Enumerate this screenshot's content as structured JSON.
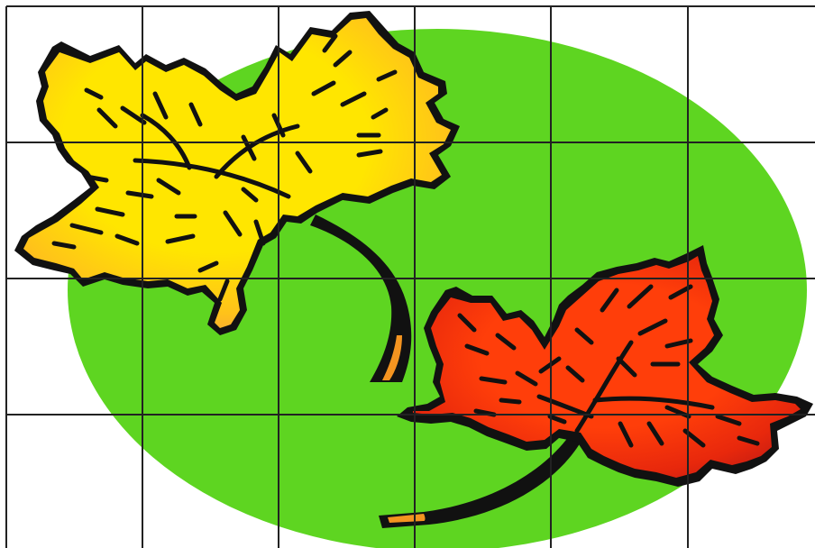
{
  "image": {
    "background_color": "#FFFFFF",
    "grid": {
      "rows": 4,
      "columns": 6,
      "line_color": "#222222"
    },
    "ellipse": {
      "fill": "#5ED521"
    },
    "leaves": [
      {
        "name": "yellow-maple-leaf",
        "fill": "#FFE600",
        "edge_color": "#F6A23C",
        "outline_color": "#111111"
      },
      {
        "name": "red-maple-leaf",
        "fill": "#FF3E0A",
        "edge_color": "#C41C12",
        "outline_color": "#111111"
      }
    ],
    "stem_color": "#F49420"
  }
}
